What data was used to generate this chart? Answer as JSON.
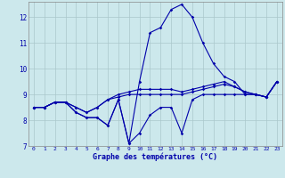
{
  "title": "Graphe des températures (°C)",
  "background_color": "#cce8ec",
  "grid_color": "#aac8cc",
  "line_color": "#0000aa",
  "hours": [
    0,
    1,
    2,
    3,
    4,
    5,
    6,
    7,
    8,
    9,
    10,
    11,
    12,
    13,
    14,
    15,
    16,
    17,
    18,
    19,
    20,
    21,
    22,
    23
  ],
  "series_main": [
    8.5,
    8.5,
    8.7,
    8.7,
    8.3,
    8.1,
    8.1,
    7.8,
    8.8,
    7.1,
    9.5,
    11.4,
    11.6,
    12.3,
    12.5,
    12.0,
    11.0,
    10.2,
    9.7,
    9.5,
    9.0,
    9.0,
    8.9,
    9.5
  ],
  "series_low": [
    8.5,
    8.5,
    8.7,
    8.7,
    8.3,
    8.1,
    8.1,
    7.8,
    8.8,
    7.1,
    7.5,
    8.2,
    8.5,
    8.5,
    7.5,
    8.8,
    9.0,
    9.0,
    9.0,
    9.0,
    9.0,
    9.0,
    8.9,
    9.5
  ],
  "series_mid1": [
    8.5,
    8.5,
    8.7,
    8.7,
    8.5,
    8.3,
    8.5,
    8.8,
    9.0,
    9.1,
    9.2,
    9.2,
    9.2,
    9.2,
    9.1,
    9.2,
    9.3,
    9.4,
    9.5,
    9.3,
    9.1,
    9.0,
    8.9,
    9.5
  ],
  "series_mid2": [
    8.5,
    8.5,
    8.7,
    8.7,
    8.5,
    8.3,
    8.5,
    8.8,
    8.9,
    9.0,
    9.0,
    9.0,
    9.0,
    9.0,
    9.0,
    9.1,
    9.2,
    9.3,
    9.4,
    9.3,
    9.1,
    9.0,
    8.9,
    9.5
  ],
  "ylim": [
    7.0,
    12.6
  ],
  "yticks": [
    7,
    8,
    9,
    10,
    11,
    12
  ],
  "xticks": [
    0,
    1,
    2,
    3,
    4,
    5,
    6,
    7,
    8,
    9,
    10,
    11,
    12,
    13,
    14,
    15,
    16,
    17,
    18,
    19,
    20,
    21,
    22,
    23
  ]
}
